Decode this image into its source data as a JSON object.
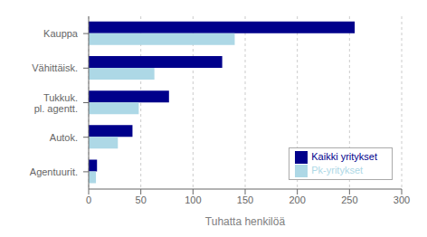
{
  "chart_data": {
    "type": "bar",
    "orientation": "horizontal",
    "categories": [
      "Agentuurit.",
      "Autok.",
      "Tukkuk.\npl. agentt.",
      "Vähittäisk.",
      "Kauppa"
    ],
    "series": [
      {
        "name": "Kaikki yritykset",
        "color": "#00008B",
        "values": [
          8,
          42,
          77,
          128,
          255
        ]
      },
      {
        "name": "Pk-yritykset",
        "color": "#ADD8E6",
        "values": [
          7,
          28,
          48,
          63,
          140
        ]
      }
    ],
    "xlabel": "Tuhatta henkilöä",
    "xlim": [
      0,
      300
    ],
    "xticks": [
      0,
      50,
      100,
      150,
      200,
      250,
      300
    ],
    "grid": true,
    "legend": "lower right"
  }
}
